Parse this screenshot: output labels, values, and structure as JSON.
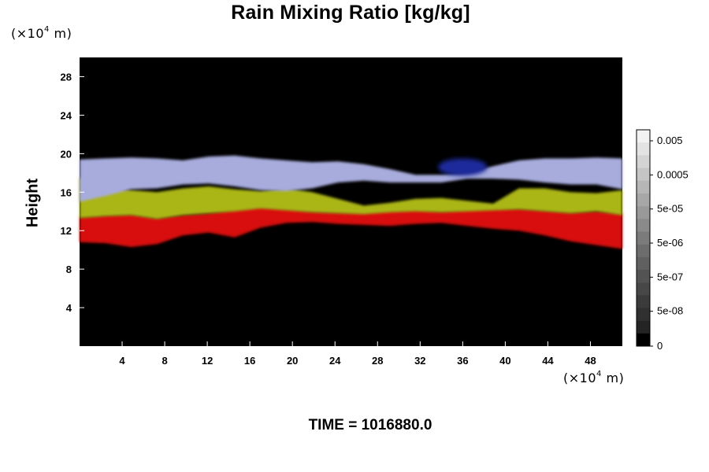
{
  "chart_data": {
    "type": "heatmap",
    "title": "Rain Mixing Ratio [kg/kg]",
    "ylabel": "Height",
    "xunit": {
      "prefix": "(×10",
      "exp": "4",
      "suffix": " m)"
    },
    "yunit": {
      "prefix": "(×10",
      "exp": "4",
      "suffix": " m)"
    },
    "xlim": [
      0,
      51
    ],
    "ylim": [
      0,
      30
    ],
    "xticks": [
      "4",
      "8",
      "12",
      "16",
      "20",
      "24",
      "28",
      "32",
      "36",
      "40",
      "44",
      "48"
    ],
    "yticks": [
      "4",
      "8",
      "12",
      "16",
      "20",
      "24",
      "28"
    ],
    "background": "#000000",
    "bands": [
      {
        "name": "upper",
        "color": "#a7acdc",
        "top": [
          19.4,
          19.5,
          19.6,
          19.5,
          19.3,
          19.7,
          19.8,
          19.5,
          19.3,
          19.1,
          19.2,
          18.9,
          18.4,
          17.8,
          17.8,
          18.0,
          18.7,
          19.3,
          19.5,
          19.5,
          19.6,
          19.5
        ],
        "bottom": [
          15.0,
          15.6,
          16.3,
          16.4,
          16.8,
          16.9,
          16.6,
          16.2,
          16.1,
          16.4,
          17.0,
          17.2,
          17.0,
          17.0,
          17.0,
          17.4,
          17.4,
          17.3,
          17.0,
          16.8,
          16.8,
          16.3
        ]
      },
      {
        "name": "middle",
        "color": "#aab514",
        "top": [
          17.5,
          16.5,
          16.2,
          16.0,
          16.4,
          16.6,
          16.3,
          16.1,
          16.4,
          16.0,
          15.3,
          14.6,
          14.9,
          15.3,
          15.4,
          15.1,
          14.8,
          16.4,
          16.4,
          16.0,
          15.9,
          16.2
        ],
        "bottom": [
          13.3,
          13.5,
          13.6,
          13.2,
          13.6,
          13.8,
          14.0,
          14.3,
          14.1,
          13.9,
          13.8,
          13.7,
          13.9,
          14.0,
          13.9,
          14.0,
          14.1,
          14.2,
          14.0,
          13.8,
          14.0,
          13.6
        ]
      },
      {
        "name": "lower",
        "color": "#d8100c",
        "top": [
          13.4,
          13.6,
          13.7,
          13.3,
          13.6,
          13.8,
          14.2,
          14.5,
          14.3,
          14.0,
          13.9,
          13.9,
          14.1,
          14.2,
          14.0,
          14.2,
          14.3,
          14.3,
          14.1,
          13.9,
          14.0,
          13.8
        ],
        "bottom": [
          10.8,
          10.7,
          10.3,
          10.6,
          11.5,
          11.8,
          11.3,
          12.3,
          12.8,
          12.9,
          12.7,
          12.6,
          12.5,
          12.7,
          12.8,
          12.5,
          12.2,
          12.0,
          11.5,
          10.9,
          10.5,
          10.1
        ]
      }
    ],
    "features": [
      {
        "name": "blue-patch",
        "color": "#1c2c9c",
        "cx": 36.0,
        "cy": 18.6,
        "rx": 2.3,
        "ry": 0.9
      }
    ],
    "colorbar": {
      "labels": [
        "0.005",
        "0.0005",
        "5e-05",
        "5e-06",
        "5e-07",
        "5e-08",
        "0"
      ],
      "colors": [
        "#f2f2f2",
        "#e3e3e3",
        "#d4d4d4",
        "#c5c5c5",
        "#b6b6b6",
        "#a7a7a7",
        "#999999",
        "#8a8a8a",
        "#7b7b7b",
        "#6d6d6d",
        "#606060",
        "#535353",
        "#474747",
        "#3b3b3b",
        "#303030",
        "#242424",
        "#000000"
      ]
    },
    "time_label": "TIME = 1016880.0"
  }
}
